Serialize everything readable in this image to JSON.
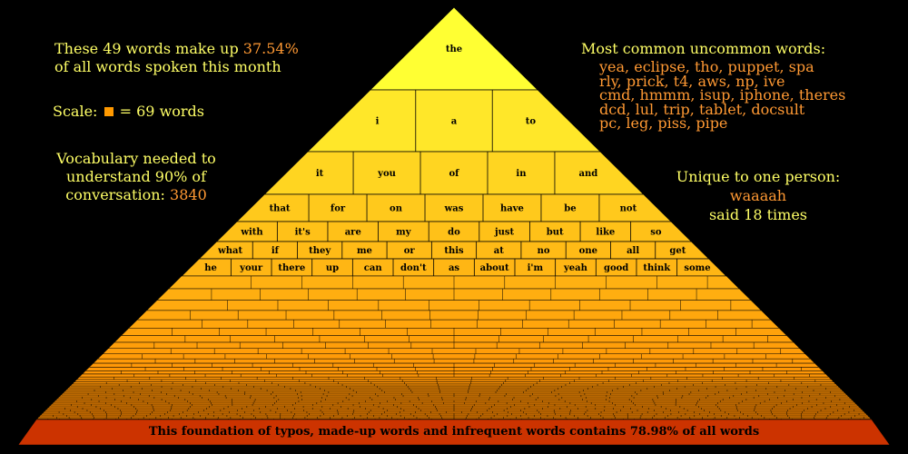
{
  "intro": {
    "line1_prefix": "These 49 words make up",
    "line1_value": "37.54%",
    "line2": "of all words spoken this month"
  },
  "scale": {
    "prefix": "Scale:",
    "suffix": "= 69 words"
  },
  "vocab": {
    "line1": "Vocabulary needed to",
    "line2": "understand 90% of",
    "line3_prefix": "conversation:",
    "line3_value": "3840"
  },
  "common": {
    "title": "Most common uncommon words:",
    "lines": [
      "yea, eclipse, tho, puppet, spa",
      "rly, prick, t4, aws, np, ive",
      "cmd, hmmm, isup, iphone, theres",
      "dcd, lul, trip, tablet, docsult",
      "pc, leg, piss, pipe"
    ]
  },
  "unique": {
    "title": "Unique to one person:",
    "word": "waaaah",
    "count": "said 18 times"
  },
  "pyramid": {
    "rows": [
      [
        "the"
      ],
      [
        "i",
        "a",
        "to"
      ],
      [
        "it",
        "you",
        "of",
        "in",
        "and"
      ],
      [
        "that",
        "for",
        "on",
        "was",
        "have",
        "be",
        "not"
      ],
      [
        "with",
        "it's",
        "are",
        "my",
        "do",
        "just",
        "but",
        "like",
        "so"
      ],
      [
        "what",
        "if",
        "they",
        "me",
        "or",
        "this",
        "at",
        "no",
        "one",
        "all",
        "get"
      ],
      [
        "he",
        "your",
        "there",
        "up",
        "can",
        "don't",
        "as",
        "about",
        "i'm",
        "yeah",
        "good",
        "think",
        "some"
      ]
    ],
    "foundation": "This foundation of typos, made-up words and infrequent words contains 78.98% of all words"
  },
  "colors": {
    "background": "#000000",
    "text": "#ffff66",
    "accent": "#ff9933",
    "pyramid_top": "#ffff33",
    "pyramid_bottom": "#ff8800",
    "foundation": "#cc3300"
  }
}
